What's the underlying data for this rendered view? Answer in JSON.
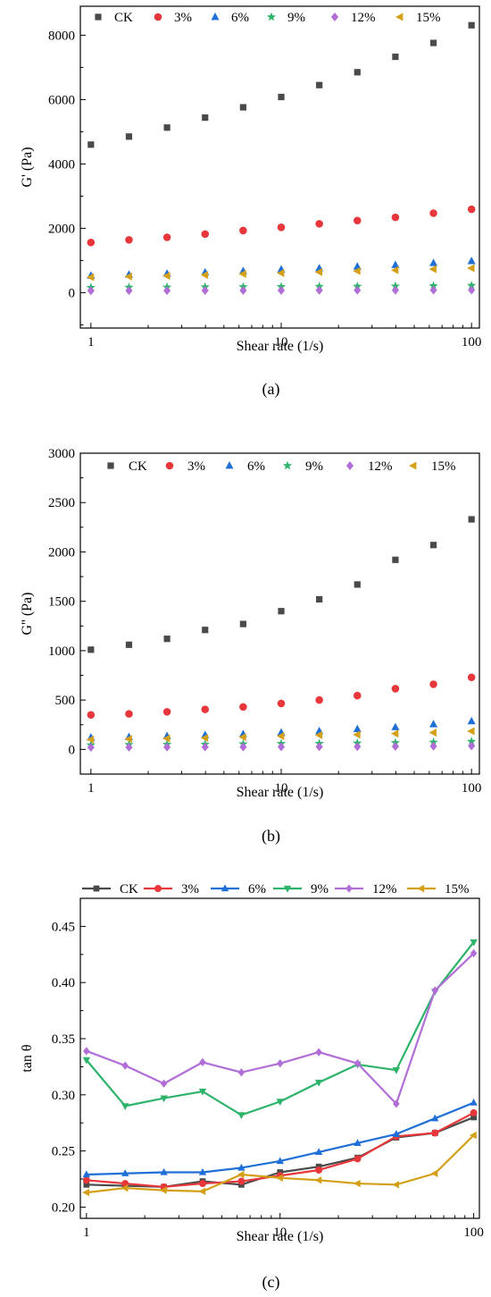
{
  "colors": {
    "CK": "#4a4a4a",
    "3%": "#e8373a",
    "6%": "#1f6fd6",
    "9%": "#2db36a",
    "12%": "#b06ed6",
    "15%": "#d4a017"
  },
  "markers": {
    "CK": "square",
    "3%": "circle",
    "6%": "triangle-up",
    "9%": "star",
    "12%": "diamond",
    "15%": "triangle-left"
  },
  "chart_data": [
    {
      "type": "scatter",
      "panel_label": "(a)",
      "xlabel": "Shear rate (1/s)",
      "ylabel": "G' (Pa)",
      "xscale": "log",
      "xlim": [
        0.88,
        110
      ],
      "ylim": [
        -1100,
        8900
      ],
      "yticks": [
        0,
        2000,
        4000,
        6000,
        8000
      ],
      "yticklabels": [
        "0",
        "2000",
        "4000",
        "6000",
        "8000"
      ],
      "xticks": [
        1,
        10,
        100
      ],
      "xticklabels": [
        "1",
        "10",
        "100"
      ],
      "legend_position": "top",
      "legend": [
        "CK",
        "3%",
        "6%",
        "9%",
        "12%",
        "15%"
      ],
      "x": [
        1,
        1.585,
        2.512,
        3.981,
        6.31,
        10,
        15.85,
        25.12,
        39.81,
        63.1,
        100
      ],
      "series": [
        {
          "name": "CK",
          "values": [
            4600,
            4850,
            5130,
            5440,
            5760,
            6080,
            6450,
            6850,
            7330,
            7760,
            8310
          ]
        },
        {
          "name": "3%",
          "values": [
            1560,
            1640,
            1720,
            1820,
            1930,
            2030,
            2140,
            2240,
            2340,
            2470,
            2590
          ]
        },
        {
          "name": "6%",
          "values": [
            530,
            560,
            590,
            630,
            670,
            720,
            760,
            810,
            860,
            920,
            980
          ]
        },
        {
          "name": "9%",
          "values": [
            160,
            165,
            170,
            175,
            180,
            185,
            190,
            195,
            200,
            210,
            220
          ]
        },
        {
          "name": "12%",
          "values": [
            60,
            62,
            64,
            66,
            68,
            70,
            72,
            74,
            76,
            78,
            80
          ]
        },
        {
          "name": "15%",
          "values": [
            480,
            500,
            520,
            550,
            580,
            610,
            640,
            670,
            700,
            730,
            760
          ]
        }
      ]
    },
    {
      "type": "scatter",
      "panel_label": "(b)",
      "xlabel": "Shear rate (1/s)",
      "ylabel": "G'' (Pa)",
      "xscale": "log",
      "xlim": [
        0.88,
        110
      ],
      "ylim": [
        -250,
        3000
      ],
      "yticks": [
        0,
        500,
        1000,
        1500,
        2000,
        2500,
        3000
      ],
      "yticklabels": [
        "0",
        "500",
        "1000",
        "1500",
        "2000",
        "2500",
        "3000"
      ],
      "xticks": [
        1,
        10,
        100
      ],
      "xticklabels": [
        "1",
        "10",
        "100"
      ],
      "legend_position": "top",
      "legend": [
        "CK",
        "3%",
        "6%",
        "9%",
        "12%",
        "15%"
      ],
      "x": [
        1,
        1.585,
        2.512,
        3.981,
        6.31,
        10,
        15.85,
        25.12,
        39.81,
        63.1,
        100
      ],
      "series": [
        {
          "name": "CK",
          "values": [
            1010,
            1060,
            1120,
            1210,
            1270,
            1400,
            1520,
            1670,
            1920,
            2070,
            2330
          ]
        },
        {
          "name": "3%",
          "values": [
            350,
            360,
            380,
            405,
            430,
            465,
            500,
            545,
            615,
            660,
            730
          ]
        },
        {
          "name": "6%",
          "values": [
            120,
            125,
            135,
            145,
            155,
            170,
            185,
            205,
            225,
            255,
            285
          ]
        },
        {
          "name": "9%",
          "values": [
            45,
            48,
            50,
            52,
            55,
            58,
            60,
            63,
            67,
            72,
            80
          ]
        },
        {
          "name": "12%",
          "values": [
            20,
            22,
            23,
            24,
            25,
            26,
            27,
            28,
            30,
            32,
            35
          ]
        },
        {
          "name": "15%",
          "values": [
            100,
            105,
            110,
            115,
            125,
            135,
            145,
            150,
            160,
            170,
            185
          ]
        }
      ]
    },
    {
      "type": "line",
      "panel_label": "(c)",
      "xlabel": "Shear rate (1/s)",
      "ylabel": "tan θ",
      "xscale": "log",
      "xlim": [
        0.93,
        107
      ],
      "ylim": [
        0.19,
        0.475
      ],
      "yticks": [
        0.2,
        0.25,
        0.3,
        0.35,
        0.4,
        0.45
      ],
      "yticklabels": [
        "0.20",
        "0.25",
        "0.30",
        "0.35",
        "0.40",
        "0.45"
      ],
      "xticks": [
        1,
        10,
        100
      ],
      "xticklabels": [
        "1",
        "10",
        "100"
      ],
      "legend_position": "above plot",
      "legend": [
        "CK",
        "3%",
        "6%",
        "9%",
        "12%",
        "15%"
      ],
      "x": [
        1,
        1.585,
        2.512,
        3.981,
        6.31,
        10,
        15.85,
        25.12,
        39.81,
        63.1,
        100
      ],
      "series": [
        {
          "name": "CK",
          "values": [
            0.22,
            0.219,
            0.218,
            0.223,
            0.22,
            0.231,
            0.236,
            0.244,
            0.262,
            0.266,
            0.28
          ]
        },
        {
          "name": "3%",
          "values": [
            0.224,
            0.221,
            0.218,
            0.221,
            0.223,
            0.228,
            0.233,
            0.243,
            0.263,
            0.266,
            0.284
          ]
        },
        {
          "name": "6%",
          "values": [
            0.229,
            0.23,
            0.231,
            0.231,
            0.235,
            0.241,
            0.249,
            0.257,
            0.265,
            0.279,
            0.293
          ]
        },
        {
          "name": "9%",
          "values": [
            0.331,
            0.29,
            0.297,
            0.303,
            0.282,
            0.294,
            0.311,
            0.327,
            0.322,
            0.392,
            0.436
          ]
        },
        {
          "name": "12%",
          "values": [
            0.339,
            0.326,
            0.31,
            0.329,
            0.32,
            0.328,
            0.338,
            0.328,
            0.292,
            0.393,
            0.426
          ]
        },
        {
          "name": "15%",
          "values": [
            0.213,
            0.217,
            0.215,
            0.214,
            0.229,
            0.226,
            0.224,
            0.221,
            0.22,
            0.23,
            0.264
          ]
        }
      ]
    }
  ]
}
